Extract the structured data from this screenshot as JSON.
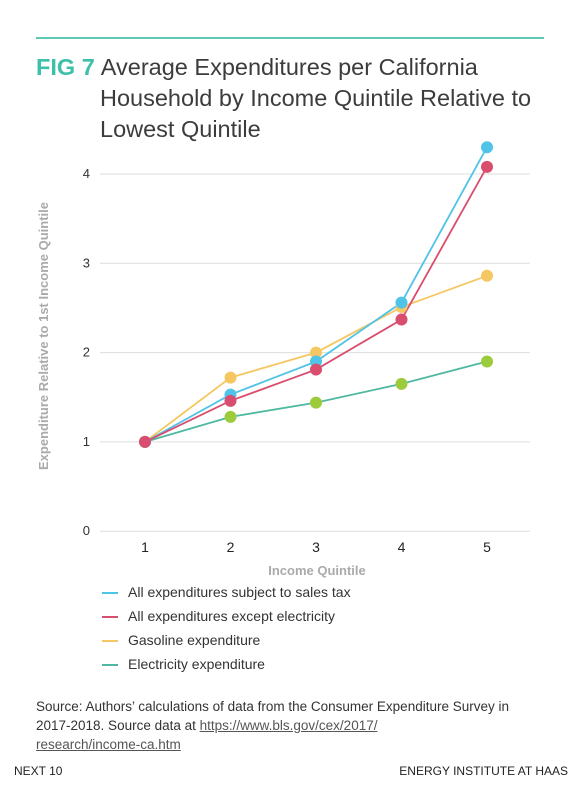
{
  "header": {
    "fig_label": "FIG 7",
    "title_line1": "Average Expenditures per California",
    "title_line2": "Household by Income Quintile Relative to",
    "title_line3": "Lowest Quintile"
  },
  "chart_data": {
    "type": "line",
    "x": [
      1,
      2,
      3,
      4,
      5
    ],
    "xlabel": "Income Quintile",
    "ylabel": "Expenditure Relative to 1st Income Quintile",
    "xticks": [
      "1",
      "2",
      "3",
      "4",
      "5"
    ],
    "yticks": [
      "0",
      "1",
      "2",
      "3",
      "4"
    ],
    "ylim": [
      0,
      4.4
    ],
    "grid": true,
    "legend_position": "bottom",
    "series": [
      {
        "name": "All expenditures subject to sales tax",
        "color": "#4fc3e8",
        "values": [
          1.0,
          1.53,
          1.9,
          2.56,
          4.3
        ]
      },
      {
        "name": "All expenditures except electricity",
        "color": "#d94d6e",
        "values": [
          1.0,
          1.46,
          1.81,
          2.37,
          4.08
        ]
      },
      {
        "name": "Gasoline expenditure",
        "color": "#f5c762",
        "values": [
          1.0,
          1.72,
          2.0,
          2.51,
          2.86
        ]
      },
      {
        "name": "Electricity expenditure",
        "color": "#9ccc3c",
        "line_color": "#4fb8a0",
        "values": [
          1.0,
          1.28,
          1.44,
          1.65,
          1.9
        ]
      }
    ]
  },
  "source": {
    "text": "Source: Authors’ calculations of data from the Consumer Expenditure Survey in 2017-2018. Source data at ",
    "link": "https://www.bls.gov/cex/2017/research/income-ca.htm",
    "link_line1": "https://www.bls.gov/cex/2017/",
    "link_line2": "research/income-ca.htm"
  },
  "footer": {
    "left": "NEXT 10",
    "right": "ENERGY INSTITUTE AT HAAS"
  }
}
